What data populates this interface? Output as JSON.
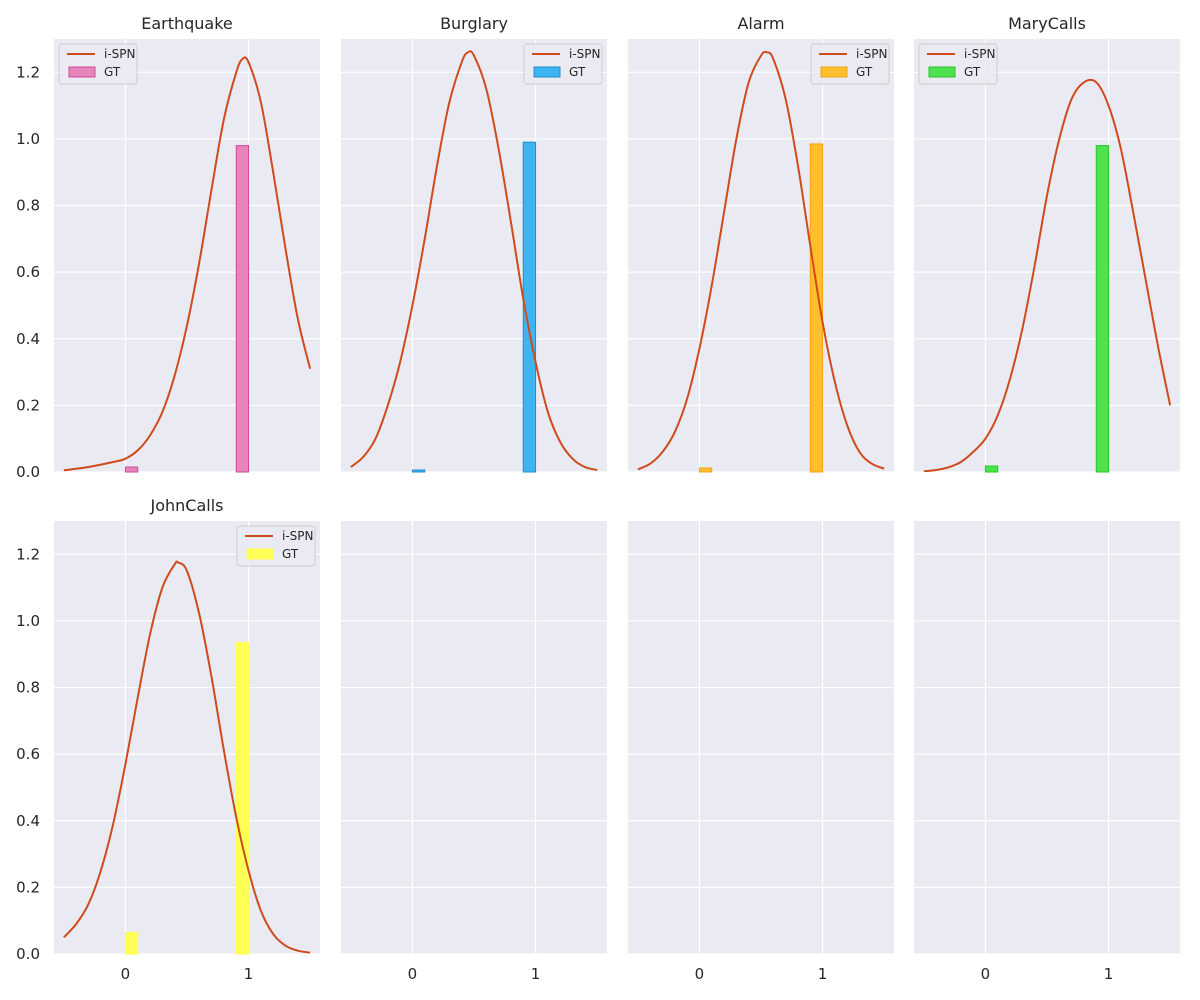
{
  "chart_data": {
    "type": "bar",
    "layout": {
      "rows": 2,
      "cols": 4
    },
    "xlim": [
      -0.58,
      1.58
    ],
    "ylim": [
      0,
      1.3
    ],
    "xticks": [
      0,
      1
    ],
    "yticks": [
      0,
      0.2,
      0.4,
      0.6,
      0.8,
      1.0,
      1.2
    ],
    "ytick_labels": [
      "0.0",
      "0.2",
      "0.4",
      "0.6",
      "0.8",
      "1.0",
      "1.2"
    ],
    "grid": true,
    "line_color": "#cf4b1b",
    "legend_labels": {
      "line": "i-SPN",
      "bar": "GT"
    },
    "bar_width": 0.1,
    "panels": [
      {
        "title": "Earthquake",
        "bar_color": "#e784ba",
        "bar_edge": "#d1499a",
        "legend_position": "top-left",
        "gt": {
          "x": [
            0.05,
            0.95
          ],
          "values": [
            0.015,
            0.98
          ]
        },
        "ispn": {
          "x": [
            -0.5,
            -0.3,
            -0.1,
            0.0,
            0.1,
            0.2,
            0.3,
            0.4,
            0.5,
            0.6,
            0.7,
            0.8,
            0.9,
            0.95,
            1.0,
            1.1,
            1.2,
            1.3,
            1.4,
            1.5
          ],
          "values": [
            0.005,
            0.015,
            0.03,
            0.04,
            0.065,
            0.11,
            0.18,
            0.29,
            0.44,
            0.63,
            0.85,
            1.06,
            1.2,
            1.24,
            1.23,
            1.11,
            0.9,
            0.67,
            0.46,
            0.31
          ]
        }
      },
      {
        "title": "Burglary",
        "bar_color": "#3eb5f0",
        "bar_edge": "#1e8ed0",
        "legend_position": "top-right",
        "gt": {
          "x": [
            0.05,
            0.95
          ],
          "values": [
            0.006,
            0.99
          ]
        },
        "ispn": {
          "x": [
            -0.5,
            -0.4,
            -0.3,
            -0.2,
            -0.1,
            0.0,
            0.1,
            0.2,
            0.3,
            0.4,
            0.45,
            0.5,
            0.6,
            0.7,
            0.8,
            0.9,
            1.0,
            1.1,
            1.2,
            1.3,
            1.4,
            1.5
          ],
          "values": [
            0.015,
            0.045,
            0.1,
            0.2,
            0.33,
            0.5,
            0.7,
            0.92,
            1.11,
            1.23,
            1.26,
            1.25,
            1.15,
            0.97,
            0.75,
            0.52,
            0.33,
            0.18,
            0.09,
            0.04,
            0.015,
            0.006
          ]
        }
      },
      {
        "title": "Alarm",
        "bar_color": "#ffbe30",
        "bar_edge": "#f5a10e",
        "legend_position": "top-right",
        "gt": {
          "x": [
            0.05,
            0.95
          ],
          "values": [
            0.012,
            0.985
          ]
        },
        "ispn": {
          "x": [
            -0.5,
            -0.4,
            -0.3,
            -0.2,
            -0.1,
            0.0,
            0.1,
            0.2,
            0.3,
            0.4,
            0.5,
            0.55,
            0.6,
            0.7,
            0.8,
            0.9,
            1.0,
            1.1,
            1.2,
            1.3,
            1.4,
            1.5
          ],
          "values": [
            0.008,
            0.025,
            0.06,
            0.12,
            0.22,
            0.37,
            0.56,
            0.78,
            1.0,
            1.17,
            1.25,
            1.26,
            1.24,
            1.12,
            0.92,
            0.68,
            0.45,
            0.27,
            0.14,
            0.06,
            0.025,
            0.01
          ]
        }
      },
      {
        "title": "MaryCalls",
        "bar_color": "#4ee34e",
        "bar_edge": "#2fbf2f",
        "legend_position": "top-left",
        "gt": {
          "x": [
            0.05,
            0.95
          ],
          "values": [
            0.018,
            0.98
          ]
        },
        "ispn": {
          "x": [
            -0.5,
            -0.4,
            -0.3,
            -0.2,
            -0.1,
            0.0,
            0.1,
            0.2,
            0.3,
            0.4,
            0.5,
            0.6,
            0.7,
            0.8,
            0.9,
            1.0,
            1.1,
            1.2,
            1.3,
            1.4,
            1.5
          ],
          "values": [
            0.002,
            0.006,
            0.014,
            0.03,
            0.06,
            0.1,
            0.17,
            0.28,
            0.43,
            0.62,
            0.83,
            1.0,
            1.12,
            1.17,
            1.17,
            1.1,
            0.97,
            0.78,
            0.58,
            0.38,
            0.2
          ]
        }
      },
      {
        "title": "JohnCalls",
        "bar_color": "#ffff55",
        "bar_edge": "#ffff55",
        "legend_position": "top-right",
        "gt": {
          "x": [
            0.05,
            0.95
          ],
          "values": [
            0.065,
            0.935
          ]
        },
        "ispn": {
          "x": [
            -0.5,
            -0.4,
            -0.3,
            -0.2,
            -0.1,
            0.0,
            0.1,
            0.2,
            0.3,
            0.4,
            0.43,
            0.5,
            0.6,
            0.7,
            0.8,
            0.9,
            1.0,
            1.1,
            1.2,
            1.3,
            1.4,
            1.5
          ],
          "values": [
            0.05,
            0.09,
            0.15,
            0.25,
            0.39,
            0.57,
            0.77,
            0.96,
            1.1,
            1.17,
            1.175,
            1.15,
            1.02,
            0.83,
            0.61,
            0.41,
            0.25,
            0.13,
            0.06,
            0.025,
            0.01,
            0.004
          ]
        }
      },
      {
        "title": "",
        "empty": true
      },
      {
        "title": "",
        "empty": true
      },
      {
        "title": "",
        "empty": true
      }
    ]
  }
}
